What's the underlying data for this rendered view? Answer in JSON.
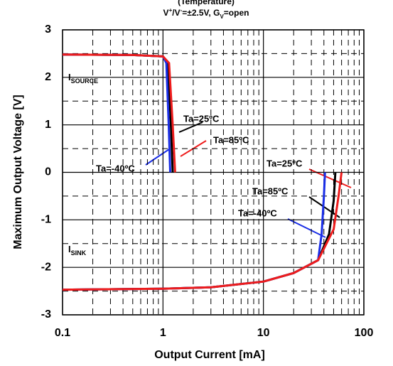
{
  "chart_data": {
    "type": "line",
    "title": "(Temperature)",
    "subtitle": [
      "V",
      "+",
      "/V",
      "-",
      "=±2.5V, G",
      "V",
      "=open"
    ],
    "x_label": "Output Current [mA]",
    "y_label": "Maximum Output Voltage [V]",
    "log_x": true,
    "xlim": [
      0.1,
      100
    ],
    "ylim": [
      -3,
      3
    ],
    "xticks": [
      0.1,
      1,
      10,
      100
    ],
    "yticks": [
      -3,
      -2,
      -1,
      0,
      1,
      2,
      3
    ],
    "xminorticks": [
      0.2,
      0.3,
      0.4,
      0.5,
      0.6,
      0.7,
      0.8,
      0.9,
      2,
      3,
      4,
      5,
      6,
      7,
      8,
      9,
      20,
      30,
      40,
      50,
      60,
      70,
      80,
      90
    ],
    "yminorticks": [
      -2.5,
      -1.5,
      -0.5,
      0.5,
      1.5,
      2.5
    ],
    "grid": true,
    "annotations": [
      [
        "I",
        "SOURCE"
      ],
      [
        "I",
        "SINK"
      ]
    ],
    "series": [
      {
        "name": "Ta=25ºC",
        "color": "#000000",
        "x": [
          0.1,
          0.5,
          1.0,
          1.12,
          1.2,
          1.25
        ],
        "values": [
          2.48,
          2.47,
          2.44,
          2.3,
          1.0,
          0
        ]
      },
      {
        "name": "Ta=85ºC",
        "color": "#ee1c1c",
        "x": [
          0.1,
          0.5,
          1.0,
          1.15,
          1.25,
          1.32
        ],
        "values": [
          2.48,
          2.47,
          2.44,
          2.3,
          1.0,
          0
        ]
      },
      {
        "name": "Ta=-40ºC",
        "color": "#1a2ee6",
        "x": [
          0.1,
          0.5,
          1.0,
          1.08,
          1.14,
          1.18
        ],
        "values": [
          2.48,
          2.47,
          2.44,
          2.3,
          1.0,
          0
        ]
      },
      {
        "name": "Ta=25ºC",
        "color": "#000000",
        "x": [
          0.1,
          1,
          3,
          10,
          20,
          35,
          45,
          50,
          52
        ],
        "values": [
          -2.47,
          -2.45,
          -2.42,
          -2.3,
          -2.12,
          -1.85,
          -1.3,
          -0.6,
          0
        ]
      },
      {
        "name": "Ta=85ºC",
        "color": "#ee1c1c",
        "x": [
          0.1,
          1,
          3,
          10,
          20,
          35,
          50,
          56,
          60
        ],
        "values": [
          -2.47,
          -2.45,
          -2.42,
          -2.3,
          -2.12,
          -1.85,
          -1.2,
          -0.5,
          0
        ]
      },
      {
        "name": "Ta=-40ºC",
        "color": "#1a2ee6",
        "x": [
          0.1,
          1,
          3,
          10,
          20,
          35,
          38,
          40,
          41
        ],
        "values": [
          -2.47,
          -2.45,
          -2.42,
          -2.3,
          -2.12,
          -1.85,
          -1.3,
          -0.5,
          0
        ]
      }
    ]
  }
}
